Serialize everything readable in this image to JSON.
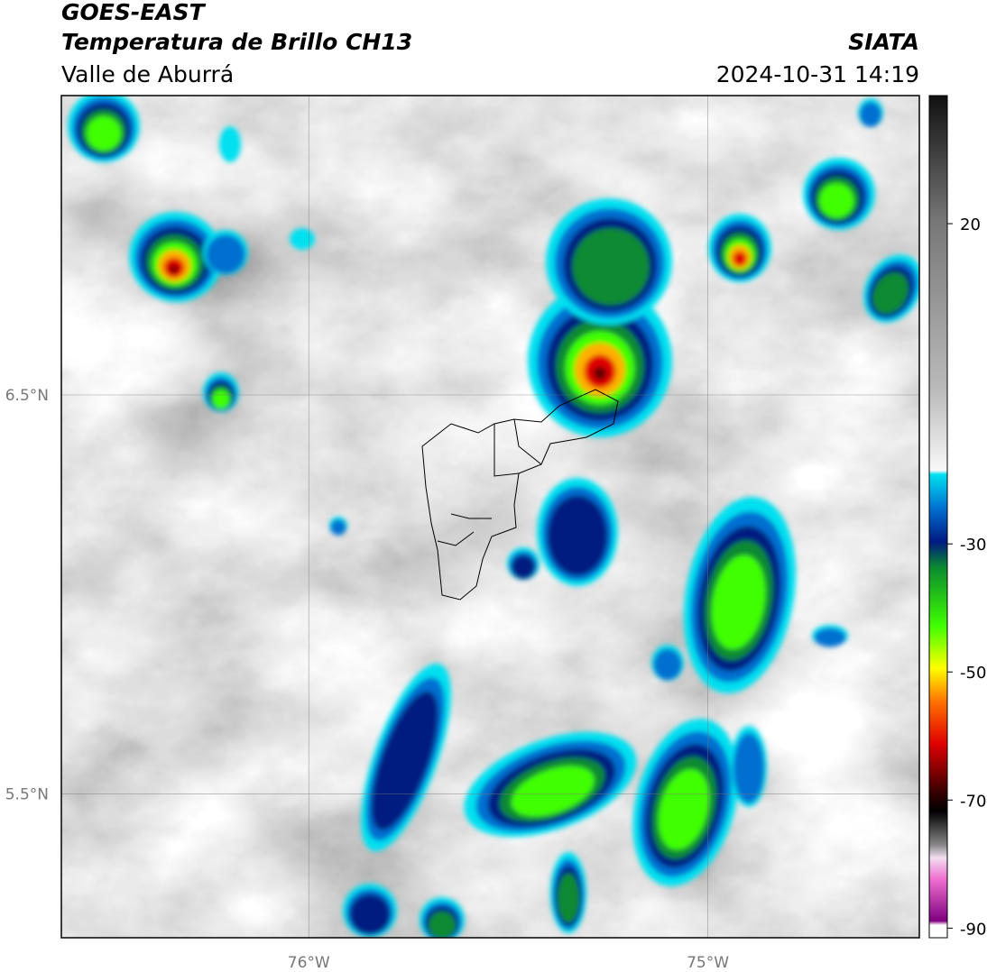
{
  "header": {
    "title": "GOES-EAST",
    "subtitle": "Temperatura de Brillo CH13",
    "region": "Valle de Aburrá",
    "source": "SIATA",
    "datetime": "2024-10-31 14:19"
  },
  "map": {
    "xlim": [
      -76.62,
      -74.47
    ],
    "ylim": [
      5.14,
      7.25
    ],
    "xticks": [
      {
        "value": -76,
        "label": "76°W"
      },
      {
        "value": -75,
        "label": "75°W"
      }
    ],
    "yticks": [
      {
        "value": 6.5,
        "label": "6.5°N"
      },
      {
        "value": 5.5,
        "label": "5.5°N"
      }
    ],
    "grid": true
  },
  "colorbar": {
    "lim": [
      -91.5,
      40
    ],
    "ticks": [
      20,
      -30,
      -50,
      -70,
      -90
    ]
  }
}
